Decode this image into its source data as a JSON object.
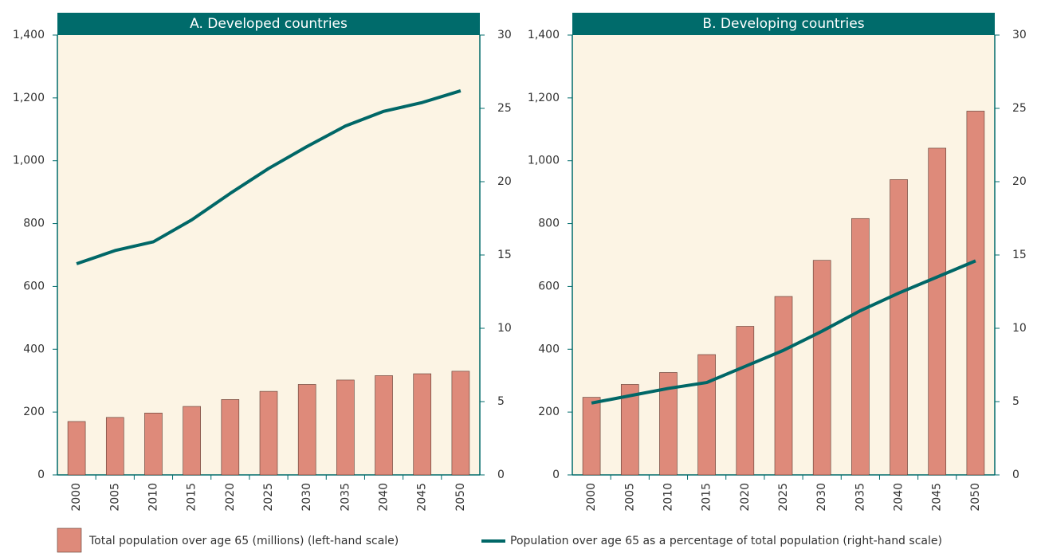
{
  "chart_data": [
    {
      "type": "bar",
      "title": "A. Developed countries",
      "categories": [
        "2000",
        "2005",
        "2010",
        "2015",
        "2020",
        "2025",
        "2030",
        "2035",
        "2040",
        "2045",
        "2050"
      ],
      "series": [
        {
          "name": "Total population over age 65 (millions) (left-hand scale)",
          "color": "#de8a7a",
          "type": "bar",
          "values": [
            170,
            183,
            197,
            218,
            240,
            266,
            288,
            302,
            316,
            322,
            330
          ]
        },
        {
          "name": "Population over age 65 as a percentage of total population (right-hand scale)",
          "color": "#006767",
          "type": "line",
          "axis": "y2",
          "values": [
            14.4,
            15.3,
            15.9,
            17.4,
            19.2,
            20.9,
            22.4,
            23.8,
            24.8,
            25.4,
            26.2
          ]
        }
      ],
      "ylim": [
        0,
        1400
      ],
      "yticks": [
        0,
        200,
        400,
        600,
        800,
        {
          "value": 1000,
          "label": "1,000"
        },
        {
          "value": 1200,
          "label": "1,200"
        },
        {
          "value": 1400,
          "label": "1,400"
        }
      ],
      "y2lim": [
        0,
        30
      ],
      "y2ticks": [
        0,
        5,
        10,
        15,
        20,
        25,
        30
      ]
    },
    {
      "type": "bar",
      "title": "B. Developing countries",
      "categories": [
        "2000",
        "2005",
        "2010",
        "2015",
        "2020",
        "2025",
        "2030",
        "2035",
        "2040",
        "2045",
        "2050"
      ],
      "series": [
        {
          "color": "#de8a7a",
          "type": "bar",
          "values": [
            247,
            288,
            326,
            383,
            473,
            568,
            683,
            816,
            940,
            1040,
            1158
          ]
        },
        {
          "color": "#006767",
          "type": "line",
          "axis": "y2",
          "values": [
            4.9,
            5.4,
            5.9,
            6.3,
            7.4,
            8.5,
            9.8,
            11.2,
            12.4,
            13.5,
            14.6
          ]
        }
      ],
      "ylim": [
        0,
        1400
      ],
      "yticks": [
        0,
        200,
        400,
        600,
        800,
        {
          "value": 1000,
          "label": "1,000"
        },
        {
          "value": 1200,
          "label": "1,200"
        },
        {
          "value": 1400,
          "label": "1,400"
        }
      ],
      "y2lim": [
        0,
        30
      ],
      "y2ticks": [
        0,
        5,
        10,
        15,
        20,
        25,
        30
      ]
    }
  ]
}
